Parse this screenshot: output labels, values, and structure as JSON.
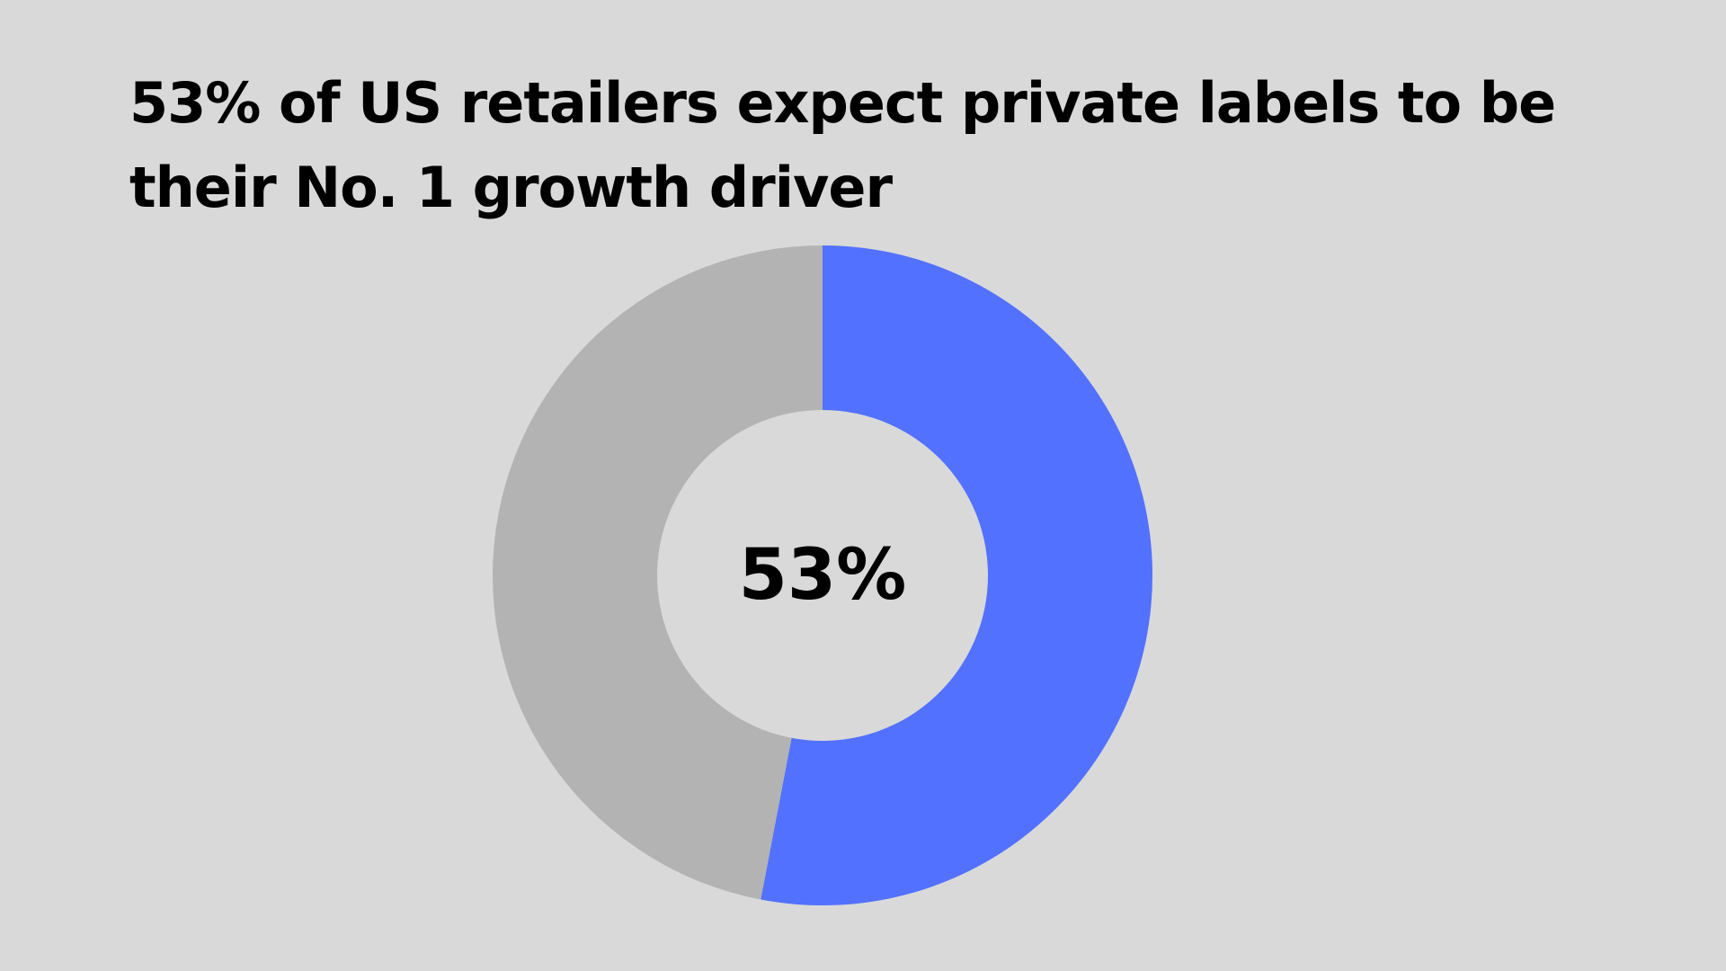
{
  "chart_data": {
    "type": "pie",
    "variant": "donut",
    "title": "53% of US retailers expect private labels to be their No. 1 growth driver",
    "center_label": "53%",
    "slices": [
      {
        "value": 53,
        "color": "#5271FF"
      },
      {
        "value": 47,
        "color": "#B3B3B3"
      }
    ],
    "start_angle": "top",
    "direction": "clockwise",
    "legend": "none",
    "background": "#D9D9D9"
  }
}
